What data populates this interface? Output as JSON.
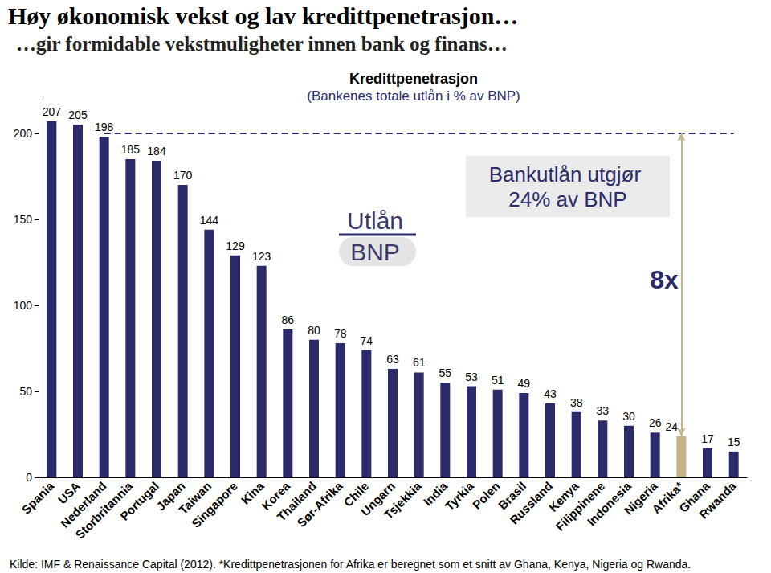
{
  "chart_data": {
    "type": "bar",
    "title": "Høy økonomisk vekst og lav kredittpenetrasjon…",
    "subtitle": "…gir formidable vekstmuligheter innen bank og finans…",
    "chart_title": "Kredittpenetrasjon",
    "chart_subtitle": "(Bankenes totale utlån i % av BNP)",
    "categories": [
      "Spania",
      "USA",
      "Nederland",
      "Storbritannia",
      "Portugal",
      "Japan",
      "Taiwan",
      "Singapore",
      "Kina",
      "Korea",
      "Thailand",
      "Sør-Afrika",
      "Chile",
      "Ungarn",
      "Tsjekkia",
      "India",
      "Tyrkia",
      "Polen",
      "Brasil",
      "Russland",
      "Kenya",
      "Filippinene",
      "Indonesia",
      "Nigeria",
      "Afrika*",
      "Ghana",
      "Rwanda"
    ],
    "values": [
      207,
      205,
      198,
      185,
      184,
      170,
      144,
      129,
      123,
      86,
      80,
      78,
      74,
      63,
      61,
      55,
      53,
      51,
      49,
      43,
      38,
      33,
      30,
      26,
      24,
      17,
      15
    ],
    "colors": [
      "#2b2b6b",
      "#2b2b6b",
      "#2b2b6b",
      "#2b2b6b",
      "#2b2b6b",
      "#2b2b6b",
      "#2b2b6b",
      "#2b2b6b",
      "#2b2b6b",
      "#2b2b6b",
      "#2b2b6b",
      "#2b2b6b",
      "#2b2b6b",
      "#2b2b6b",
      "#2b2b6b",
      "#2b2b6b",
      "#2b2b6b",
      "#2b2b6b",
      "#2b2b6b",
      "#2b2b6b",
      "#2b2b6b",
      "#2b2b6b",
      "#2b2b6b",
      "#2b2b6b",
      "#c4b48a",
      "#2b2b6b",
      "#2b2b6b"
    ],
    "ylim": [
      0,
      220
    ],
    "yticks": [
      0,
      50,
      100,
      150,
      200
    ],
    "grid": false,
    "data_labels": true,
    "reference_line": 200,
    "annotations": {
      "fraction_numerator": "Utlån",
      "fraction_denominator": "BNP",
      "box": "Bankutlån utgjør 24% av BNP",
      "multiple": "8x",
      "multiple_category": "Afrika*"
    },
    "source": "Kilde: IMF & Renaissance Capital (2012). *Kredittpenetrasjonen for Afrika er beregnet som et snitt av Ghana, Kenya, Nigeria og Rwanda."
  }
}
